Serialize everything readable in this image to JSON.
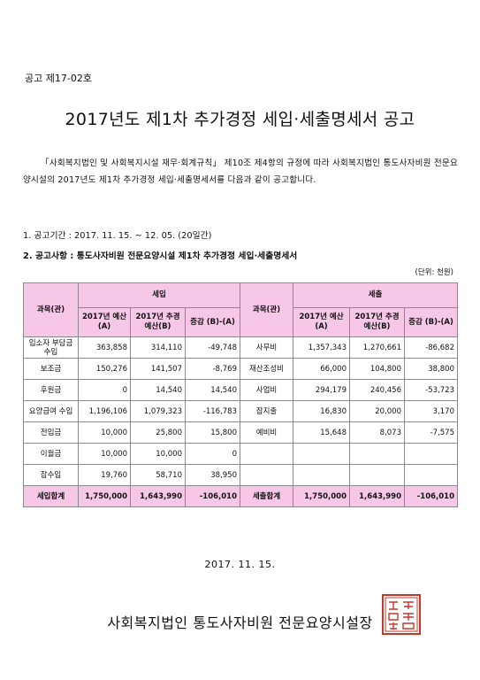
{
  "notice_no": "공고 제17-02호",
  "title": "2017년도 제1차 추가경정 세입·세출명세서 공고",
  "body": "「사회복지법인 및 사회복지시설 재무·회계규칙」 제10조 제4항의 규정에 따라 사회복지법인 통도사자비원 전문요양시설의 2017년도 제1차 추가경정 세입·세출명세서를 다음과 같이 공고합니다.",
  "items": [
    "1. 공고기간 : 2017. 11. 15. ~ 12. 05. (20일간)",
    "2. 공고사항 : 통도사자비원 전문요양시설 제1차 추가경정 세입·세출명세서"
  ],
  "unit": "(단위: 천원)",
  "table": {
    "revenue_header": "세입",
    "expense_header": "세출",
    "account_header": "과목(관)",
    "col_budget": "2017년 예산(A)",
    "col_supp": "2017년 추경 예산(B)",
    "col_diff": "증감 (B)-(A)",
    "rows": [
      {
        "r_name": "입소자 부담금수입",
        "r_a": "363,858",
        "r_b": "314,110",
        "r_d": "-49,748",
        "e_name": "사무비",
        "e_a": "1,357,343",
        "e_b": "1,270,661",
        "e_d": "-86,682"
      },
      {
        "r_name": "보조금",
        "r_a": "150,276",
        "r_b": "141,507",
        "r_d": "-8,769",
        "e_name": "재산조성비",
        "e_a": "66,000",
        "e_b": "104,800",
        "e_d": "38,800"
      },
      {
        "r_name": "후원금",
        "r_a": "0",
        "r_b": "14,540",
        "r_d": "14,540",
        "e_name": "사업비",
        "e_a": "294,179",
        "e_b": "240,456",
        "e_d": "-53,723"
      },
      {
        "r_name": "요양급여 수입",
        "r_a": "1,196,106",
        "r_b": "1,079,323",
        "r_d": "-116,783",
        "e_name": "잡지출",
        "e_a": "16,830",
        "e_b": "20,000",
        "e_d": "3,170"
      },
      {
        "r_name": "전입금",
        "r_a": "10,000",
        "r_b": "25,800",
        "r_d": "15,800",
        "e_name": "예비비",
        "e_a": "15,648",
        "e_b": "8,073",
        "e_d": "-7,575"
      },
      {
        "r_name": "이월금",
        "r_a": "10,000",
        "r_b": "10,000",
        "r_d": "0",
        "e_name": "",
        "e_a": "",
        "e_b": "",
        "e_d": ""
      },
      {
        "r_name": "잡수입",
        "r_a": "19,760",
        "r_b": "58,710",
        "r_d": "38,950",
        "e_name": "",
        "e_a": "",
        "e_b": "",
        "e_d": ""
      }
    ],
    "total": {
      "r_name": "세입합계",
      "r_a": "1,750,000",
      "r_b": "1,643,990",
      "r_d": "-106,010",
      "e_name": "세출합계",
      "e_a": "1,750,000",
      "e_b": "1,643,990",
      "e_d": "-106,010"
    }
  },
  "date": "2017. 11. 15.",
  "org": "사회복지법인 통도사자비원 전문요양시설장",
  "seal_color": "#c0392b"
}
